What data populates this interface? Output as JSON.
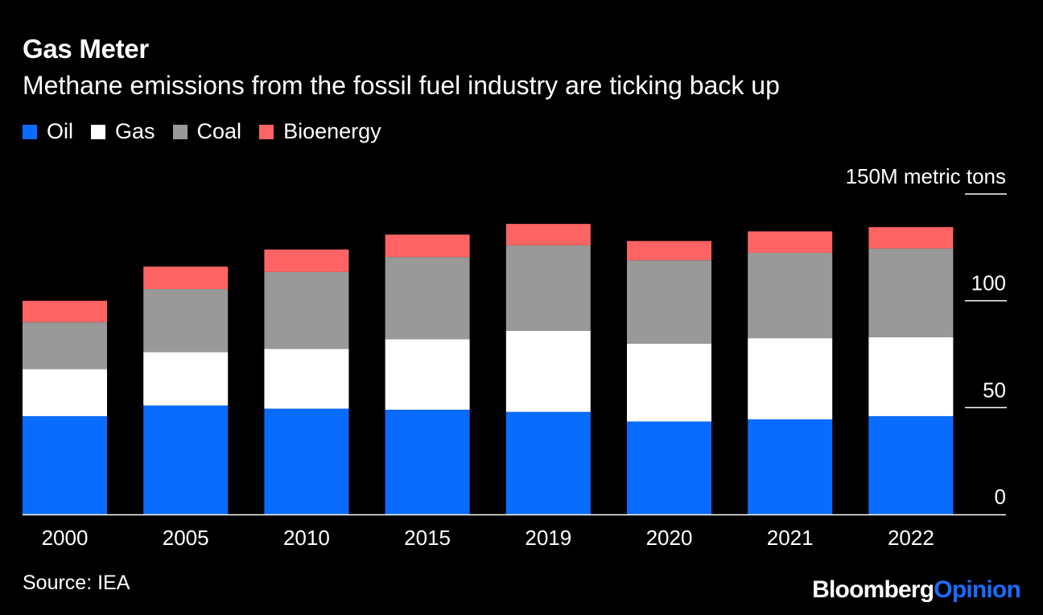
{
  "title": "Gas Meter",
  "subtitle": "Methane emissions from the fossil fuel industry are ticking back up",
  "legend": [
    {
      "label": "Oil",
      "color": "#0a6cff"
    },
    {
      "label": "Gas",
      "color": "#ffffff"
    },
    {
      "label": "Coal",
      "color": "#999999"
    },
    {
      "label": "Bioenergy",
      "color": "#ff6464"
    }
  ],
  "source": "Source: IEA",
  "brand": {
    "primary": "Bloomberg",
    "secondary": "Opinion",
    "secondary_color": "#1a6cff"
  },
  "chart_data": {
    "type": "bar",
    "stacked": true,
    "title": "Gas Meter",
    "subtitle": "Methane emissions from the fossil fuel industry are ticking back up",
    "categories": [
      "2000",
      "2005",
      "2010",
      "2015",
      "2019",
      "2020",
      "2021",
      "2022"
    ],
    "series": [
      {
        "name": "Oil",
        "color": "#0a6cff",
        "values": [
          46,
          51,
          49.5,
          49,
          48,
          43.5,
          44.5,
          46
        ]
      },
      {
        "name": "Gas",
        "color": "#ffffff",
        "values": [
          22,
          25,
          28,
          33,
          38,
          36.5,
          38,
          37
        ]
      },
      {
        "name": "Coal",
        "color": "#999999",
        "values": [
          22,
          29.5,
          36,
          38.5,
          40,
          39,
          40,
          41.5
        ]
      },
      {
        "name": "Bioenergy",
        "color": "#ff6464",
        "values": [
          10,
          10.5,
          10.5,
          10.5,
          10,
          9,
          10,
          10
        ]
      }
    ],
    "ylim": [
      0,
      150
    ],
    "yticks": [
      0,
      50,
      100,
      150
    ],
    "ytick_labels": [
      "0",
      "50",
      "100",
      "150M metric tons"
    ],
    "ylabel": "",
    "xlabel": "",
    "legend_position": "top-left"
  }
}
